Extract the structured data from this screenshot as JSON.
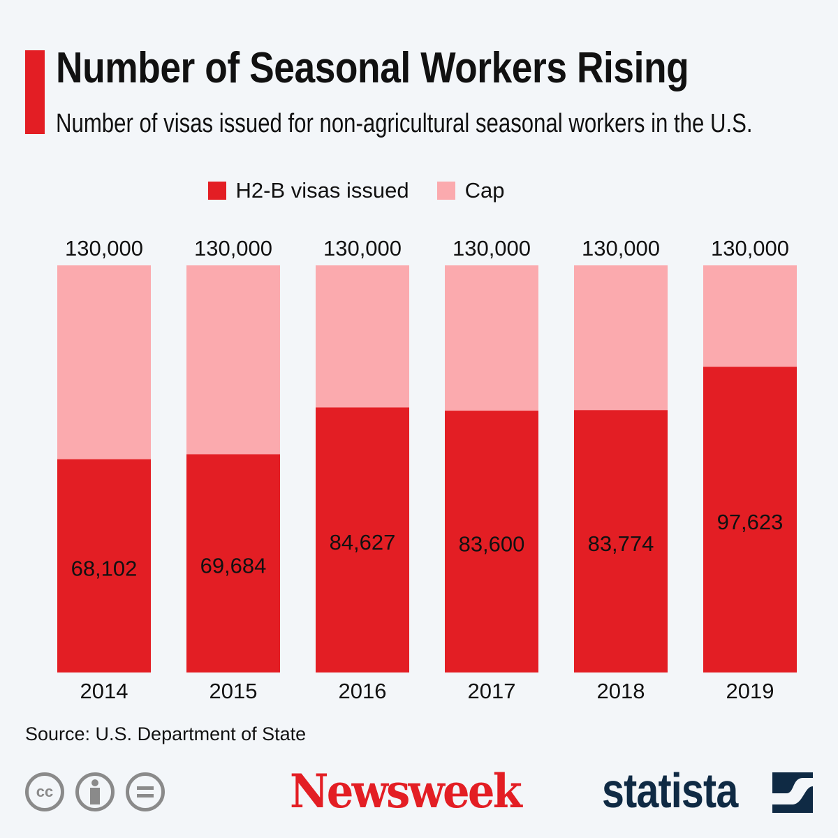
{
  "header": {
    "title": "Number of Seasonal Workers Rising",
    "subtitle": "Number of visas issued for non-agricultural seasonal workers in the U.S."
  },
  "colors": {
    "issued": "#e31e24",
    "cap": "#fbaaae",
    "accent": "#e31e24"
  },
  "chart_data": {
    "type": "bar",
    "stacked": "overlay",
    "categories": [
      "2014",
      "2015",
      "2016",
      "2017",
      "2018",
      "2019"
    ],
    "series": [
      {
        "name": "H2-B visas issued",
        "values": [
          68102,
          69684,
          84627,
          83600,
          83774,
          97623
        ],
        "labels": [
          "68,102",
          "69,684",
          "84,627",
          "83,600",
          "83,774",
          "97,623"
        ]
      },
      {
        "name": "Cap",
        "values": [
          130000,
          130000,
          130000,
          130000,
          130000,
          130000
        ],
        "labels": [
          "130,000",
          "130,000",
          "130,000",
          "130,000",
          "130,000",
          "130,000"
        ]
      }
    ],
    "ylim": [
      0,
      130000
    ],
    "grid": false,
    "legend": "top"
  },
  "footer": {
    "source": "Source: U.S. Department of State",
    "license_icons": [
      "cc-icon",
      "attribution-icon",
      "no-derivatives-icon"
    ],
    "cc_text": "cc",
    "publisher": "Newsweek",
    "brand": "statista"
  }
}
